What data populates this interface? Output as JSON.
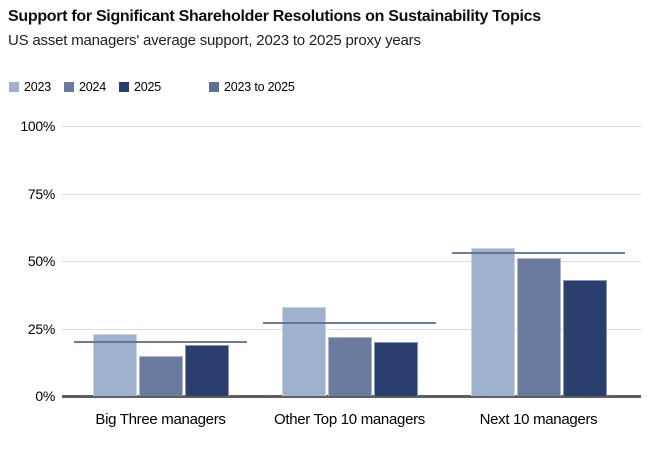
{
  "header": {
    "title": "Support for Significant Shareholder Resolutions on Sustainability Topics",
    "subtitle": "US asset managers' average support, 2023 to 2025 proxy years"
  },
  "legend": {
    "items": [
      {
        "label": "2023",
        "color": "#9fb2cd",
        "kind": "bar-series"
      },
      {
        "label": "2024",
        "color": "#6b7ba0",
        "kind": "bar-series"
      },
      {
        "label": "2025",
        "color": "#2b3f6e",
        "kind": "bar-series"
      },
      {
        "label": "2023 to 2025",
        "color": "#5f7097",
        "kind": "average-line",
        "spaced": true
      }
    ]
  },
  "chart_data": {
    "type": "bar",
    "title": "Support for Significant Shareholder Resolutions on Sustainability Topics",
    "subtitle": "US asset managers' average support, 2023 to 2025 proxy years",
    "categories": [
      "Big Three managers",
      "Other Top 10 managers",
      "Next 10 managers"
    ],
    "series": [
      {
        "name": "2023",
        "color": "#9fb2cd",
        "values": [
          23,
          33,
          55
        ]
      },
      {
        "name": "2024",
        "color": "#6b7ba0",
        "values": [
          15,
          22,
          51
        ]
      },
      {
        "name": "2025",
        "color": "#2b3f6e",
        "values": [
          19,
          20,
          43
        ]
      }
    ],
    "average_lines": {
      "name": "2023 to 2025",
      "color": "#5f7097",
      "values": [
        20,
        27,
        53
      ]
    },
    "xlabel": "",
    "ylabel": "",
    "ylim": [
      0,
      100
    ],
    "yticks": [
      "0%",
      "25%",
      "50%",
      "75%",
      "100%"
    ],
    "grid": "horizontal",
    "legend_position": "top-left"
  },
  "colors": {
    "background": "#ffffff",
    "gridline": "#dadada",
    "axis_baseline": "#5e5f61",
    "text": "#000000"
  }
}
